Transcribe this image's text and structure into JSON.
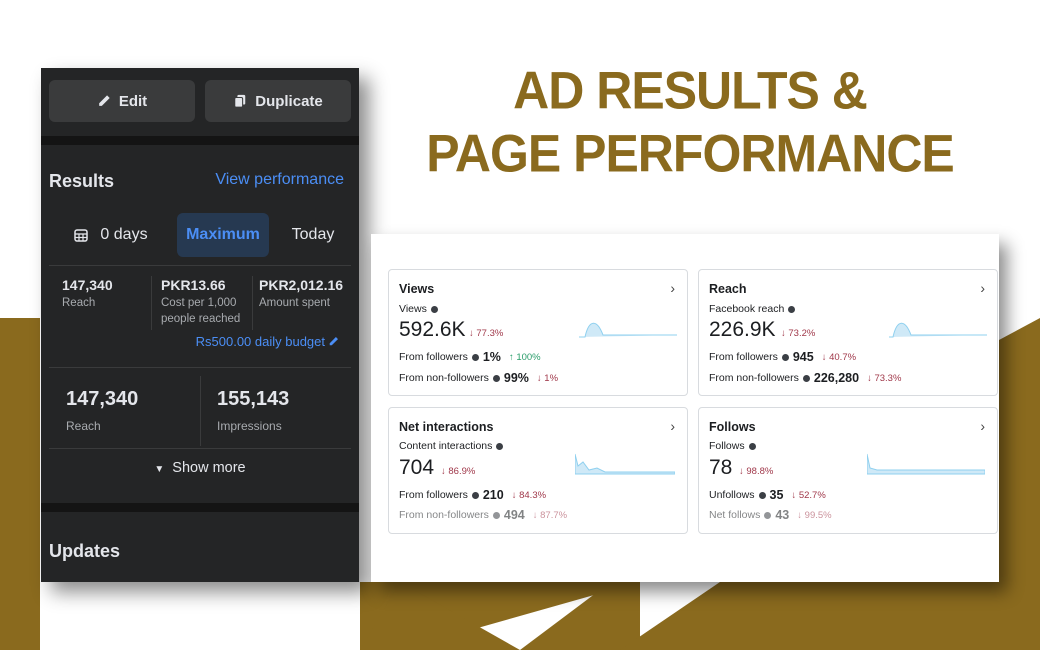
{
  "headline": {
    "line1": "AD RESULTS &",
    "line2": "PAGE PERFORMANCE"
  },
  "colors": {
    "gold": "#8a6a1e",
    "link_blue": "#4b8ef5",
    "down_red": "#a0384a",
    "up_green": "#2a9d6a"
  },
  "phone": {
    "edit_label": "Edit",
    "duplicate_label": "Duplicate",
    "results_title": "Results",
    "view_performance": "View performance",
    "ranges": {
      "days": "0 days",
      "maximum": "Maximum",
      "today": "Today",
      "selected": "Maximum"
    },
    "metrics": [
      {
        "value": "147,340",
        "label": "Reach"
      },
      {
        "value": "PKR13.66",
        "label": "Cost per 1,000 people reached"
      },
      {
        "value": "PKR2,012.16",
        "label": "Amount spent"
      }
    ],
    "budget": "Rs500.00 daily budget",
    "summary": [
      {
        "value": "147,340",
        "label": "Reach"
      },
      {
        "value": "155,143",
        "label": "Impressions"
      }
    ],
    "show_more": "Show more",
    "updates_title": "Updates"
  },
  "dashboard": {
    "views": {
      "title": "Views",
      "sub": "Views",
      "value": "592.6K",
      "change": "77.3%",
      "rows": [
        {
          "label": "From followers",
          "value": "1%",
          "change": "100%",
          "dir": "up"
        },
        {
          "label": "From non-followers",
          "value": "99%",
          "change": "1%",
          "dir": "down"
        }
      ]
    },
    "reach": {
      "title": "Reach",
      "sub": "Facebook reach",
      "value": "226.9K",
      "change": "73.2%",
      "rows": [
        {
          "label": "From followers",
          "value": "945",
          "change": "40.7%",
          "dir": "down"
        },
        {
          "label": "From non-followers",
          "value": "226,280",
          "change": "73.3%",
          "dir": "down"
        }
      ]
    },
    "interactions": {
      "title": "Net interactions",
      "sub": "Content interactions",
      "value": "704",
      "change": "86.9%",
      "rows": [
        {
          "label": "From followers",
          "value": "210",
          "change": "84.3%",
          "dir": "down"
        },
        {
          "label": "From non-followers",
          "value": "494",
          "change": "87.7%",
          "dir": "down"
        }
      ]
    },
    "follows": {
      "title": "Follows",
      "sub": "Follows",
      "value": "78",
      "change": "98.8%",
      "rows": [
        {
          "label": "Unfollows",
          "value": "35",
          "change": "52.7%",
          "dir": "down"
        },
        {
          "label": "Net follows",
          "value": "43",
          "change": "99.5%",
          "dir": "down"
        }
      ]
    }
  }
}
